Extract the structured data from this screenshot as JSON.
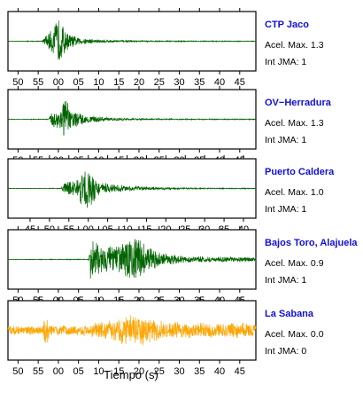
{
  "chart_data": {
    "type": "line",
    "xlabel": "Tiempo (s)",
    "panels": [
      {
        "station": "CTP Jaco",
        "accel_label": "Acel. Max. 1.3",
        "jma_label": "Int JMA: 1",
        "color": "#006400",
        "ticks": [
          "50",
          "55",
          "00",
          "05",
          "10",
          "15",
          "20",
          "25",
          "30",
          "35",
          "40",
          "45"
        ],
        "xlim": [
          47.5,
          47.0
        ],
        "envelope": [
          [
            0,
            0.01
          ],
          [
            6.0,
            0.02
          ],
          [
            7.0,
            0.25
          ],
          [
            8.5,
            0.45
          ],
          [
            10.0,
            0.95
          ],
          [
            11.0,
            0.65
          ],
          [
            12.5,
            0.3
          ],
          [
            15,
            0.14
          ],
          [
            20,
            0.07
          ],
          [
            26,
            0.035
          ],
          [
            35,
            0.02
          ],
          [
            60,
            0.015
          ]
        ]
      },
      {
        "station": "OV−Herradura",
        "accel_label": "Acel. Max. 1.3",
        "jma_label": "Int JMA: 1",
        "color": "#006400",
        "ticks": [
          "50",
          "55",
          "00",
          "05",
          "10",
          "15",
          "20",
          "25",
          "30",
          "35",
          "40",
          "45"
        ],
        "xlim": [
          47.5,
          47.0
        ],
        "envelope": [
          [
            0,
            0.01
          ],
          [
            7.5,
            0.015
          ],
          [
            8.3,
            0.25
          ],
          [
            10.5,
            0.5
          ],
          [
            11.5,
            0.95
          ],
          [
            12.5,
            0.55
          ],
          [
            14,
            0.3
          ],
          [
            17,
            0.16
          ],
          [
            22,
            0.07
          ],
          [
            28,
            0.035
          ],
          [
            40,
            0.02
          ],
          [
            60,
            0.015
          ]
        ]
      },
      {
        "station": "Puerto Caldera",
        "accel_label": "Acel. Max. 1.0",
        "jma_label": "Int JMA: 1",
        "color": "#006400",
        "ticks": [
          "45",
          "50",
          "55",
          "00",
          "05",
          "10",
          "15",
          "20",
          "25",
          "30",
          "35",
          "40"
        ],
        "xlim": [
          44.3,
          46.2
        ],
        "envelope": [
          [
            0,
            0.01
          ],
          [
            8.0,
            0.015
          ],
          [
            8.8,
            0.25
          ],
          [
            12,
            0.32
          ],
          [
            14.5,
            0.95
          ],
          [
            16,
            0.7
          ],
          [
            17,
            0.3
          ],
          [
            20,
            0.18
          ],
          [
            25,
            0.1
          ],
          [
            30,
            0.07
          ],
          [
            35,
            0.04
          ],
          [
            45,
            0.02
          ],
          [
            60,
            0.015
          ]
        ]
      },
      {
        "station": "Bajos Toro, Alajuela",
        "accel_label": "Acel. Max. 0.9",
        "jma_label": "Int JMA: 1",
        "color": "#006400",
        "ticks": [
          "50",
          "55",
          "00",
          "05",
          "10",
          "15",
          "20",
          "25",
          "30",
          "35",
          "40",
          "45"
        ],
        "xlim": [
          47.5,
          47.0
        ],
        "envelope": [
          [
            0,
            0.01
          ],
          [
            17.5,
            0.015
          ],
          [
            18.0,
            0.85
          ],
          [
            19.5,
            0.65
          ],
          [
            21,
            0.55
          ],
          [
            25,
            0.55
          ],
          [
            27,
            0.7
          ],
          [
            29.5,
            0.95
          ],
          [
            31,
            0.65
          ],
          [
            34,
            0.35
          ],
          [
            38,
            0.2
          ],
          [
            42,
            0.12
          ],
          [
            60,
            0.08
          ]
        ]
      },
      {
        "station": "La Sabana",
        "accel_label": "Acel. Max. 0.0",
        "jma_label": "Int JMA: 0",
        "color": "#FFA500",
        "ticks": [
          "50",
          "55",
          "00",
          "05",
          "10",
          "15",
          "20",
          "25",
          "30",
          "35",
          "40",
          "45"
        ],
        "xlim": [
          47.5,
          47.0
        ],
        "envelope": [
          [
            0,
            0.18
          ],
          [
            5.5,
            0.18
          ],
          [
            6.2,
            0.16
          ],
          [
            7.0,
            0.95
          ],
          [
            7.8,
            0.2
          ],
          [
            15,
            0.18
          ],
          [
            17,
            0.22
          ],
          [
            19,
            0.3
          ],
          [
            22,
            0.35
          ],
          [
            26,
            0.55
          ],
          [
            29,
            0.62
          ],
          [
            32,
            0.5
          ],
          [
            36,
            0.35
          ],
          [
            42,
            0.3
          ],
          [
            60,
            0.28
          ]
        ]
      }
    ]
  }
}
